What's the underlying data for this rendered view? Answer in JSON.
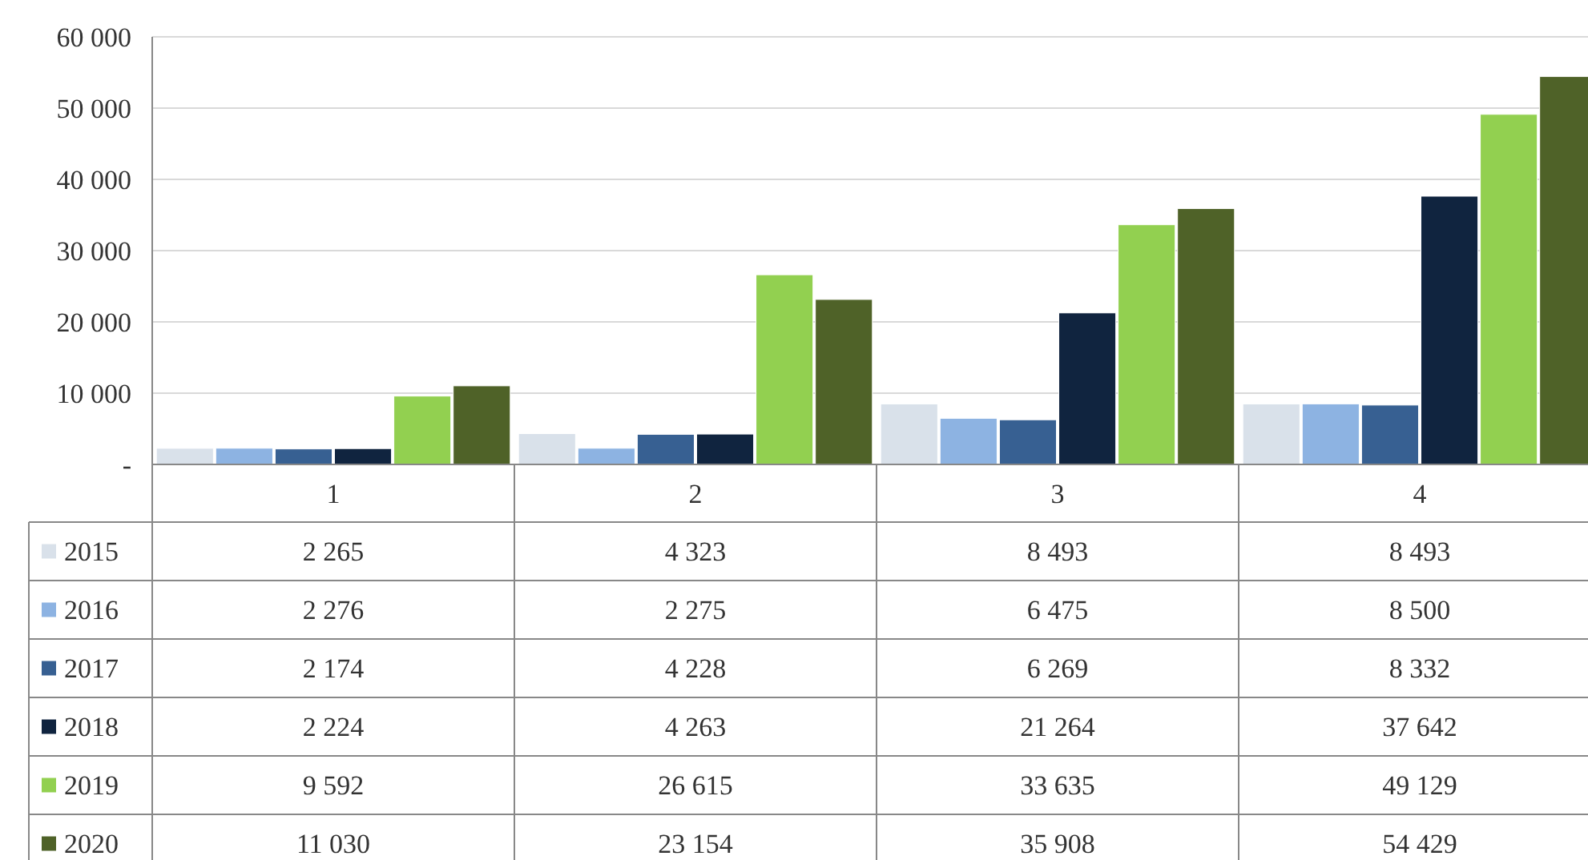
{
  "chart_data": {
    "type": "bar",
    "categories": [
      "1",
      "2",
      "3",
      "4"
    ],
    "series": [
      {
        "name": "2015",
        "color": "#d9e1ea",
        "values": [
          2265,
          4323,
          8493,
          8493
        ],
        "value_labels": [
          "2 265",
          "4 323",
          "8 493",
          "8 493"
        ]
      },
      {
        "name": "2016",
        "color": "#8db3e2",
        "values": [
          2276,
          2275,
          6475,
          8500
        ],
        "value_labels": [
          "2 276",
          "2 275",
          "6 475",
          "8 500"
        ]
      },
      {
        "name": "2017",
        "color": "#376092",
        "values": [
          2174,
          4228,
          6269,
          8332
        ],
        "value_labels": [
          "2 174",
          "4 228",
          "6 269",
          "8 332"
        ]
      },
      {
        "name": "2018",
        "color": "#10243f",
        "values": [
          2224,
          4263,
          21264,
          37642
        ],
        "value_labels": [
          "2 224",
          "4 263",
          "21 264",
          "37 642"
        ]
      },
      {
        "name": "2019",
        "color": "#92d050",
        "values": [
          9592,
          26615,
          33635,
          49129
        ],
        "value_labels": [
          "9 592",
          "26 615",
          "33 635",
          "49 129"
        ]
      },
      {
        "name": "2020",
        "color": "#4f6228",
        "values": [
          11030,
          23154,
          35908,
          54429
        ],
        "value_labels": [
          "11 030",
          "23 154",
          "35 908",
          "54 429"
        ]
      }
    ],
    "ylim": [
      0,
      60000
    ],
    "yticks": [
      {
        "value": 0,
        "label": "-"
      },
      {
        "value": 10000,
        "label": "10 000"
      },
      {
        "value": 20000,
        "label": "20 000"
      },
      {
        "value": 30000,
        "label": "30 000"
      },
      {
        "value": 40000,
        "label": "40 000"
      },
      {
        "value": 50000,
        "label": "50 000"
      },
      {
        "value": 60000,
        "label": "60 000"
      }
    ],
    "grid": "y",
    "legend": "bottom"
  }
}
